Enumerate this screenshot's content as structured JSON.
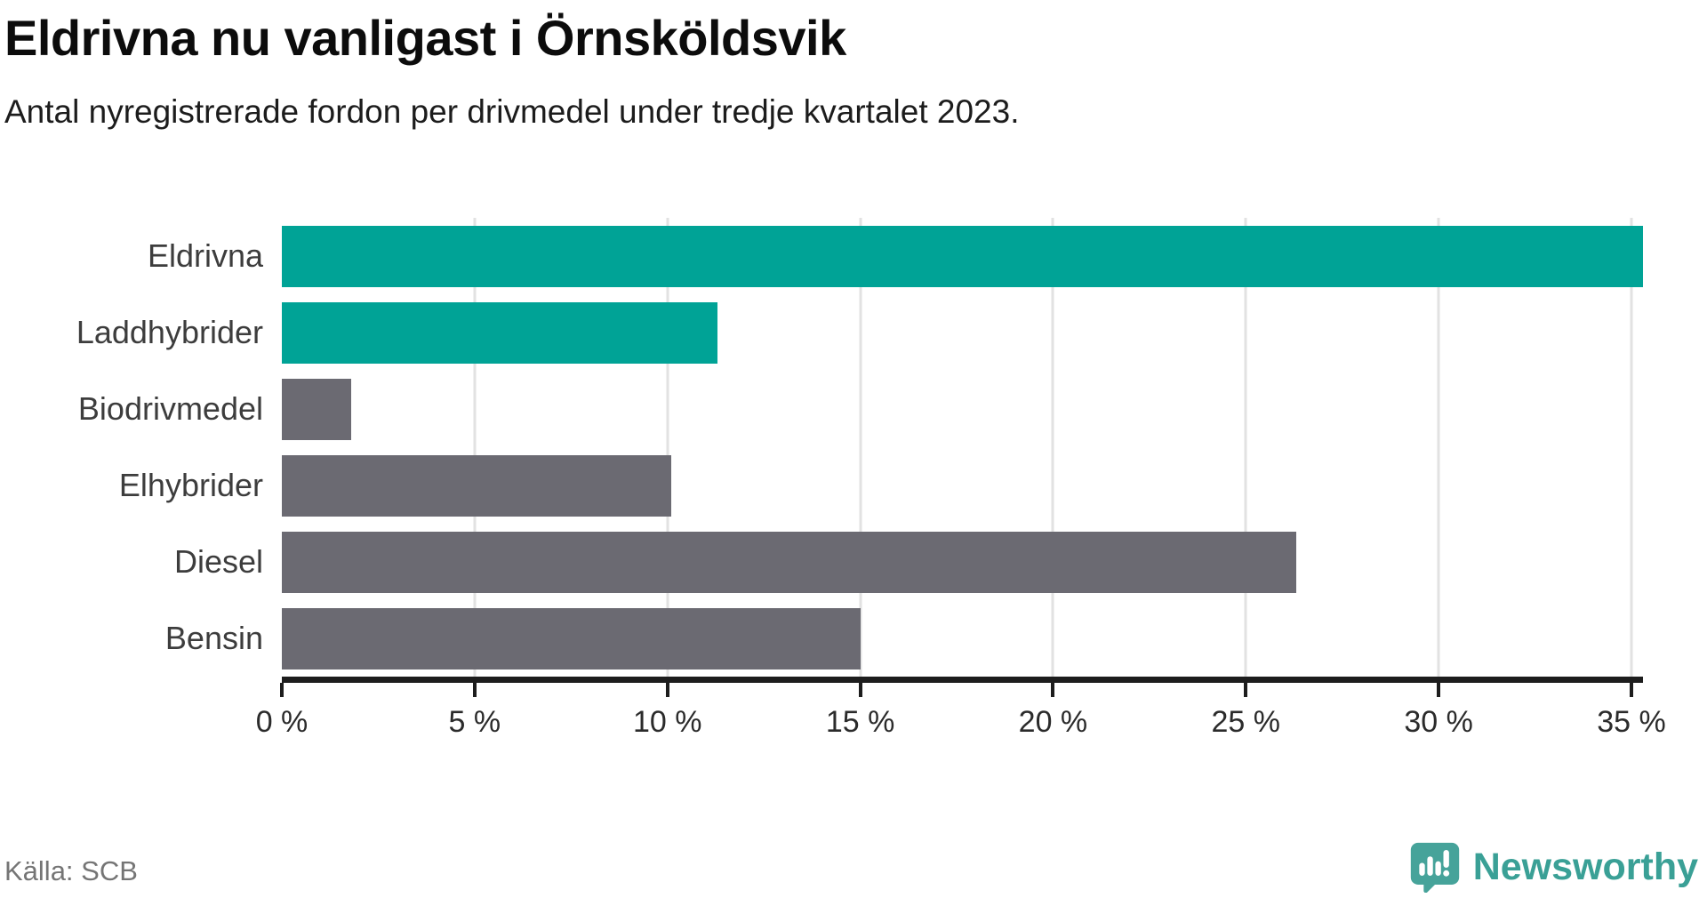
{
  "header": {
    "title": "Eldrivna nu vanligast i Örnsköldsvik",
    "subtitle": "Antal nyregistrerade fordon per drivmedel under tredje kvartalet 2023."
  },
  "footer": {
    "source": "Källa: SCB",
    "brand_name": "Newsworthy",
    "brand_logo_icon": "newsworthy-speech-bubble-bar-chart-icon"
  },
  "colors": {
    "highlight_teal": "#00a396",
    "neutral_gray": "#6b6a72",
    "gridline": "#e2e2e2",
    "axis": "#1d1d1d",
    "category_text": "#3d3d3d",
    "tick_text": "#2b2b2b",
    "source_text": "#757575",
    "brand_teal": "#3aa096",
    "logo_fill": "#46a39a"
  },
  "chart_data": {
    "type": "bar",
    "orientation": "horizontal",
    "title": "Eldrivna nu vanligast i Örnsköldsvik",
    "subtitle": "Antal nyregistrerade fordon per drivmedel under tredje kvartalet 2023.",
    "categories": [
      "Eldrivna",
      "Laddhybrider",
      "Biodrivmedel",
      "Elhybrider",
      "Diesel",
      "Bensin"
    ],
    "values": [
      35.3,
      11.3,
      1.8,
      10.1,
      26.3,
      15.0
    ],
    "unit": "%",
    "bar_colors": [
      "#00a396",
      "#00a396",
      "#6b6a72",
      "#6b6a72",
      "#6b6a72",
      "#6b6a72"
    ],
    "xlim": [
      0,
      35.3
    ],
    "x_ticks": [
      0,
      5,
      10,
      15,
      20,
      25,
      30,
      35
    ],
    "x_tick_labels": [
      "0 %",
      "5 %",
      "10 %",
      "15 %",
      "20 %",
      "25 %",
      "30 %",
      "35 %"
    ],
    "grid": "vertical-gridlines-behind-bars",
    "legend": "none",
    "source": "Källa: SCB"
  }
}
